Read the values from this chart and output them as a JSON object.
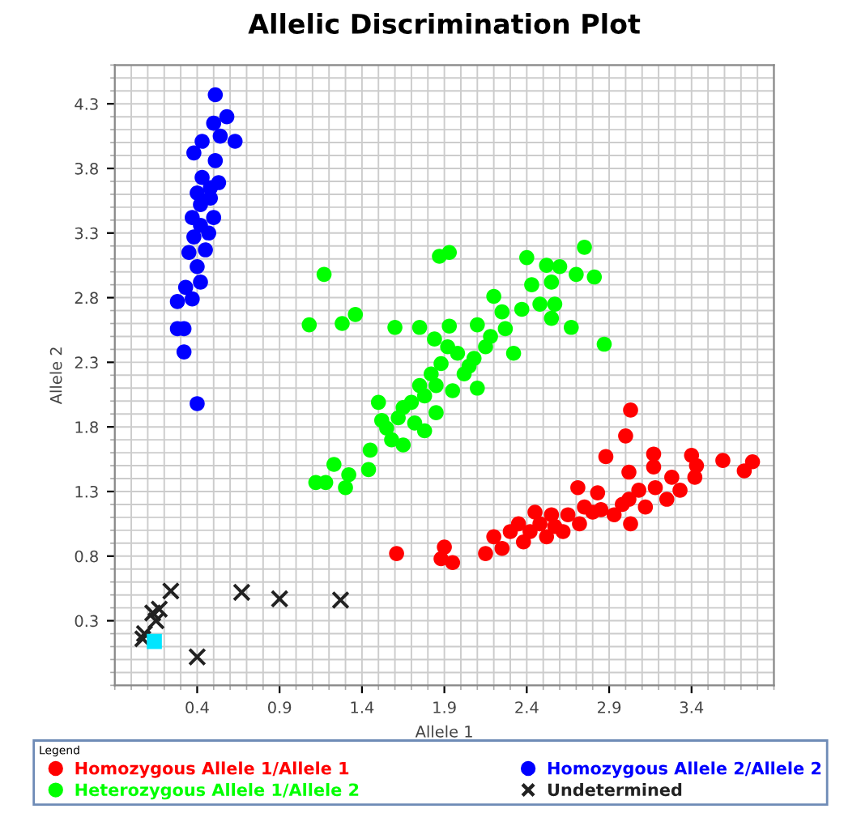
{
  "chart_data": {
    "type": "scatter",
    "title": "Allelic Discrimination Plot",
    "xlabel": "Allele 1",
    "ylabel": "Allele 2",
    "legend_title": "Legend",
    "legend": "bottom",
    "grid": true,
    "xlim": [
      -0.1,
      3.9
    ],
    "ylim": [
      -0.2,
      4.6
    ],
    "xticks": [
      0.4,
      0.9,
      1.4,
      1.9,
      2.4,
      2.9,
      3.4
    ],
    "yticks": [
      0.3,
      0.8,
      1.3,
      1.8,
      2.3,
      2.8,
      3.3,
      3.8,
      4.3
    ],
    "series": [
      {
        "name": "Homozygous Allele 1/Allele 1",
        "color": "#ff0000",
        "marker": "circle",
        "x": [
          3.03,
          3.0,
          2.88,
          3.02,
          3.17,
          3.17,
          3.4,
          3.43,
          3.59,
          3.77,
          3.72,
          3.42,
          3.28,
          3.33,
          3.25,
          3.12,
          3.02,
          3.03,
          2.93,
          2.83,
          2.71,
          2.85,
          2.75,
          2.65,
          2.57,
          2.48,
          2.42,
          2.35,
          2.45,
          2.2,
          2.25,
          2.15,
          1.95,
          1.9,
          1.88,
          1.61,
          2.62,
          2.72,
          2.55,
          2.8,
          2.98,
          3.18,
          3.08,
          2.38,
          2.52,
          2.3
        ],
        "values": [
          1.93,
          1.73,
          1.57,
          1.45,
          1.59,
          1.49,
          1.58,
          1.5,
          1.54,
          1.53,
          1.46,
          1.41,
          1.41,
          1.31,
          1.24,
          1.18,
          1.24,
          1.05,
          1.12,
          1.29,
          1.33,
          1.16,
          1.18,
          1.12,
          1.03,
          1.05,
          0.99,
          1.05,
          1.14,
          0.95,
          0.86,
          0.82,
          0.75,
          0.87,
          0.78,
          0.82,
          0.99,
          1.05,
          1.12,
          1.14,
          1.2,
          1.33,
          1.31,
          0.91,
          0.95,
          0.99
        ]
      },
      {
        "name": "Homozygous Allele 2/Allele 2",
        "color": "#0000ff",
        "marker": "circle",
        "x": [
          0.51,
          0.58,
          0.5,
          0.54,
          0.63,
          0.43,
          0.38,
          0.51,
          0.43,
          0.53,
          0.4,
          0.48,
          0.37,
          0.5,
          0.47,
          0.38,
          0.45,
          0.35,
          0.4,
          0.42,
          0.33,
          0.37,
          0.28,
          0.32,
          0.28,
          0.32,
          0.4,
          0.48,
          0.42,
          0.42
        ],
        "values": [
          4.37,
          4.2,
          4.15,
          4.05,
          4.01,
          4.01,
          3.92,
          3.86,
          3.73,
          3.69,
          3.61,
          3.57,
          3.42,
          3.42,
          3.3,
          3.27,
          3.17,
          3.15,
          3.04,
          2.92,
          2.88,
          2.79,
          2.77,
          2.56,
          2.56,
          2.38,
          1.98,
          3.65,
          3.52,
          3.36
        ]
      },
      {
        "name": "Heterozygous Allele 1/Allele 2",
        "color": "#00ff00",
        "marker": "circle",
        "x": [
          1.17,
          1.08,
          1.28,
          1.36,
          1.87,
          1.93,
          2.4,
          2.52,
          2.6,
          2.7,
          2.75,
          2.81,
          2.2,
          2.43,
          2.55,
          2.57,
          2.37,
          2.25,
          2.55,
          2.67,
          2.87,
          1.6,
          1.75,
          1.93,
          1.84,
          2.1,
          2.18,
          2.32,
          2.08,
          1.98,
          1.88,
          2.02,
          1.82,
          1.95,
          1.78,
          2.1,
          1.5,
          1.65,
          1.85,
          1.72,
          1.52,
          1.78,
          1.58,
          1.45,
          1.65,
          1.23,
          1.32,
          1.12,
          1.18,
          1.3,
          1.44,
          1.55,
          1.92,
          2.15,
          1.75,
          2.05,
          1.62,
          1.85,
          1.7,
          2.27,
          2.48
        ],
        "values": [
          2.98,
          2.59,
          2.6,
          2.67,
          3.12,
          3.15,
          3.11,
          3.05,
          3.04,
          2.98,
          3.19,
          2.96,
          2.81,
          2.9,
          2.92,
          2.75,
          2.71,
          2.69,
          2.64,
          2.57,
          2.44,
          2.57,
          2.57,
          2.58,
          2.48,
          2.59,
          2.5,
          2.37,
          2.33,
          2.37,
          2.29,
          2.21,
          2.21,
          2.08,
          2.04,
          2.1,
          1.99,
          1.95,
          1.91,
          1.83,
          1.85,
          1.77,
          1.7,
          1.62,
          1.66,
          1.51,
          1.43,
          1.37,
          1.37,
          1.33,
          1.47,
          1.79,
          2.42,
          2.42,
          2.12,
          2.27,
          1.87,
          2.12,
          1.99,
          2.56,
          2.75
        ]
      },
      {
        "name": "Undetermined",
        "color": "#222222",
        "marker": "cross",
        "x": [
          0.24,
          0.67,
          0.9,
          1.27,
          0.4,
          0.13,
          0.17,
          0.08,
          0.07,
          0.15
        ],
        "values": [
          0.53,
          0.52,
          0.47,
          0.46,
          0.02,
          0.36,
          0.39,
          0.2,
          0.16,
          0.3
        ]
      },
      {
        "color": "#00e5ff",
        "marker": "square",
        "x": [
          0.14
        ],
        "values": [
          0.14
        ]
      }
    ]
  }
}
